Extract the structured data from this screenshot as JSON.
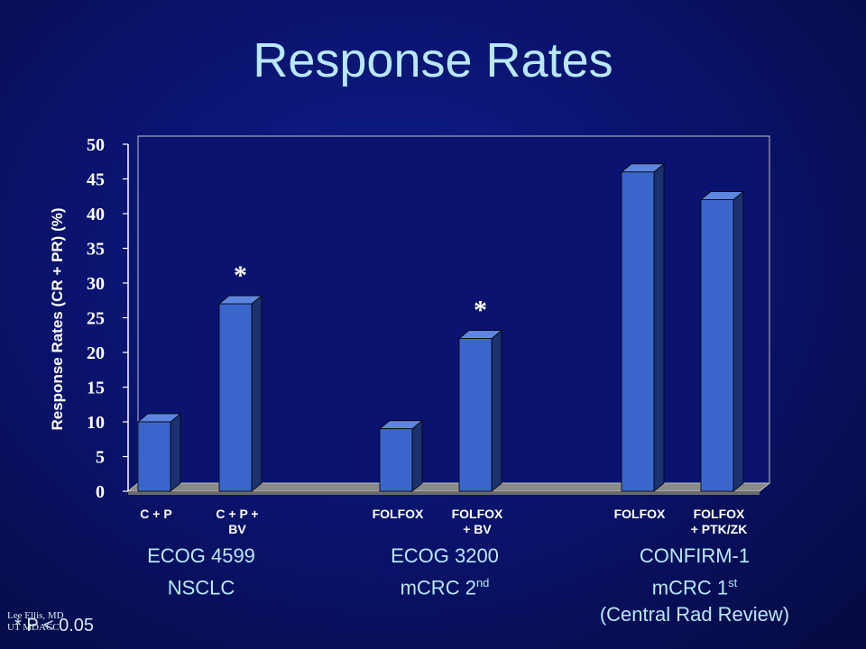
{
  "slide": {
    "title": "Response Rates",
    "footnote": "* P < 0.05",
    "author_line1": "Lee Ellis, MD",
    "author_line2": "UT MDACC"
  },
  "groups": [
    {
      "line1": "ECOG 4599",
      "line2": "NSCLC",
      "line2_sup": "",
      "line3": ""
    },
    {
      "line1": "ECOG 3200",
      "line2": "mCRC 2",
      "line2_sup": "nd",
      "line3": ""
    },
    {
      "line1": "CONFIRM-1",
      "line2": "mCRC 1",
      "line2_sup": "st",
      "line3": "(Central Rad Review)"
    }
  ],
  "colors": {
    "bar_front": "#3a66cc",
    "bar_side": "#1c3170",
    "bar_top": "#5e86e0",
    "plot_bg": "#0a1470",
    "axis": "#ffffff",
    "title": "#b8e8f8"
  },
  "chart_data": {
    "type": "bar",
    "title": "",
    "ylabel": "Response Rates (CR + PR) (%)",
    "ylim": [
      0,
      50
    ],
    "yticks": [
      0,
      5,
      10,
      15,
      20,
      25,
      30,
      35,
      40,
      45,
      50
    ],
    "categories": [
      [
        "C + P"
      ],
      [
        "C + P +",
        "BV"
      ],
      [
        "FOLFOX"
      ],
      [
        "FOLFOX",
        "+ BV"
      ],
      [
        "FOLFOX"
      ],
      [
        "FOLFOX",
        "+ PTK/ZK"
      ]
    ],
    "values": [
      10,
      27,
      9,
      22,
      46,
      42
    ],
    "significant": [
      false,
      true,
      false,
      true,
      false,
      false
    ],
    "significance_marker": "*",
    "grid": false
  }
}
